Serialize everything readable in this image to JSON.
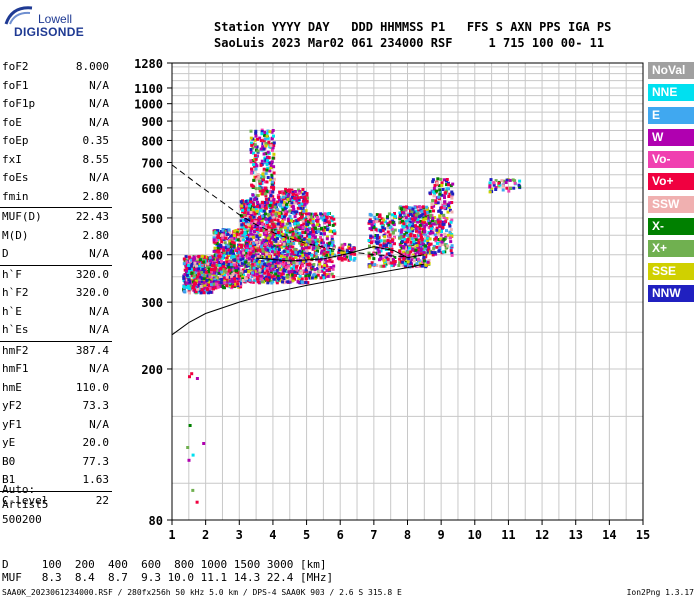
{
  "logo": {
    "top": "Lowell",
    "bottom": "DIGISONDE"
  },
  "header": {
    "line1": "Station YYYY DAY   DDD HHMMSS P1   FFS S AXN PPS IGA PS",
    "line2": "SaoLuis 2023 Mar02 061 234000 RSF     1 715 100 00- 11"
  },
  "params": [
    {
      "label": "foF2",
      "value": "8.000"
    },
    {
      "label": "foF1",
      "value": "N/A"
    },
    {
      "label": "foF1p",
      "value": "N/A"
    },
    {
      "label": "foE",
      "value": "N/A"
    },
    {
      "label": "foEp",
      "value": "0.35"
    },
    {
      "label": "fxI",
      "value": "8.55"
    },
    {
      "label": "foEs",
      "value": "N/A"
    },
    {
      "label": "fmin",
      "value": "2.80"
    },
    {
      "label": "MUF(D)",
      "value": "22.43"
    },
    {
      "label": "M(D)",
      "value": "2.80"
    },
    {
      "label": "D",
      "value": "N/A"
    },
    {
      "label": "h`F",
      "value": "320.0"
    },
    {
      "label": "h`F2",
      "value": "320.0"
    },
    {
      "label": "h`E",
      "value": "N/A"
    },
    {
      "label": "h`Es",
      "value": "N/A"
    },
    {
      "label": "hmF2",
      "value": "387.4"
    },
    {
      "label": "hmF1",
      "value": "N/A"
    },
    {
      "label": "hmE",
      "value": "110.0"
    },
    {
      "label": "yF2",
      "value": "73.3"
    },
    {
      "label": "yF1",
      "value": "N/A"
    },
    {
      "label": "yE",
      "value": "20.0"
    },
    {
      "label": "B0",
      "value": "77.3"
    },
    {
      "label": "B1",
      "value": "1.63"
    },
    {
      "label": "C-level",
      "value": "22"
    }
  ],
  "auto": {
    "line1": "Auto:",
    "line2": "Artist5",
    "line3": "500200"
  },
  "legend": [
    {
      "label": "NoVal",
      "color": "#a0a0a0"
    },
    {
      "label": "NNE",
      "color": "#00e0f0"
    },
    {
      "label": "E",
      "color": "#40a8f0"
    },
    {
      "label": "W",
      "color": "#b000b0"
    },
    {
      "label": "Vo-",
      "color": "#f040b0"
    },
    {
      "label": "Vo+",
      "color": "#f00040"
    },
    {
      "label": "SSW",
      "color": "#f0b0b0"
    },
    {
      "label": "X-",
      "color": "#008000"
    },
    {
      "label": "X+",
      "color": "#70b050"
    },
    {
      "label": "SSE",
      "color": "#d0d000"
    },
    {
      "label": "NNW",
      "color": "#2020c0"
    }
  ],
  "bottom": {
    "line1": "D     100  200  400  600  800 1000 1500 3000 [km]",
    "line2": "MUF   8.3  8.4  8.7  9.3 10.0 11.1 14.3 22.4 [MHz]"
  },
  "footer": "SAA0K_2023061234000.RSF / 280fx256h 50 kHz 5.0 km / DPS-4 SAA0K 903 / 2.6 S 315.8 E",
  "footer_right": "Ion2Png 1.3.17",
  "chart_data": {
    "type": "scatter",
    "xlim": [
      1,
      15
    ],
    "ylim": [
      80,
      1280
    ],
    "xticks": [
      "1",
      "2",
      "3",
      "4",
      "5",
      "6",
      "7",
      "8",
      "9",
      "10",
      "11",
      "12",
      "13",
      "14",
      "15"
    ],
    "yticks": [
      "80",
      "200",
      "300",
      "400",
      "500",
      "600",
      "700",
      "800",
      "900",
      "1000",
      "1100",
      "1280"
    ],
    "ytick_values": [
      80,
      200,
      300,
      400,
      500,
      600,
      700,
      800,
      900,
      1000,
      1100,
      1280
    ],
    "y_scale": "log",
    "grid": true,
    "legend_position": "right",
    "clusters": [
      {
        "x": [
          1.3,
          2.2
        ],
        "y": [
          320,
          400
        ],
        "n": 450
      },
      {
        "x": [
          2.2,
          3.0
        ],
        "y": [
          330,
          470
        ],
        "n": 520
      },
      {
        "x": [
          3.0,
          4.1
        ],
        "y": [
          340,
          560
        ],
        "n": 900
      },
      {
        "x": [
          3.3,
          4.0
        ],
        "y": [
          560,
          860
        ],
        "n": 220
      },
      {
        "x": [
          4.1,
          5.0
        ],
        "y": [
          340,
          600
        ],
        "n": 650
      },
      {
        "x": [
          5.0,
          5.8
        ],
        "y": [
          350,
          520
        ],
        "n": 320
      },
      {
        "x": [
          5.9,
          6.4
        ],
        "y": [
          390,
          430
        ],
        "n": 60
      },
      {
        "x": [
          6.8,
          7.6
        ],
        "y": [
          375,
          520
        ],
        "n": 200
      },
      {
        "x": [
          7.7,
          8.6
        ],
        "y": [
          375,
          540
        ],
        "n": 450
      },
      {
        "x": [
          8.6,
          9.3
        ],
        "y": [
          400,
          640
        ],
        "n": 220
      },
      {
        "x": [
          10.4,
          11.3
        ],
        "y": [
          590,
          640
        ],
        "n": 40
      },
      {
        "x": [
          1.4,
          1.9
        ],
        "y": [
          80,
          200
        ],
        "n": 10
      }
    ],
    "trace_lines": [
      {
        "style": "dashed",
        "points": [
          [
            1.0,
            690
          ],
          [
            1.8,
            610
          ],
          [
            2.5,
            550
          ],
          [
            3.0,
            510
          ],
          [
            3.5,
            480
          ],
          [
            4.2,
            450
          ],
          [
            5.0,
            428
          ],
          [
            6.0,
            410
          ],
          [
            7.0,
            400
          ],
          [
            8.0,
            395
          ]
        ]
      },
      {
        "style": "solid",
        "points": [
          [
            1.0,
            246
          ],
          [
            1.5,
            265
          ],
          [
            2.0,
            280
          ],
          [
            3.0,
            300
          ],
          [
            4.0,
            318
          ],
          [
            5.0,
            332
          ],
          [
            6.0,
            345
          ],
          [
            7.0,
            357
          ],
          [
            8.0,
            370
          ],
          [
            8.5,
            378
          ]
        ]
      },
      {
        "style": "solid",
        "points": [
          [
            3.5,
            392
          ],
          [
            4.5,
            385
          ],
          [
            5.5,
            390
          ],
          [
            6.2,
            402
          ],
          [
            7.0,
            420
          ],
          [
            7.6,
            410
          ],
          [
            8.0,
            393
          ],
          [
            8.5,
            400
          ]
        ]
      }
    ]
  }
}
